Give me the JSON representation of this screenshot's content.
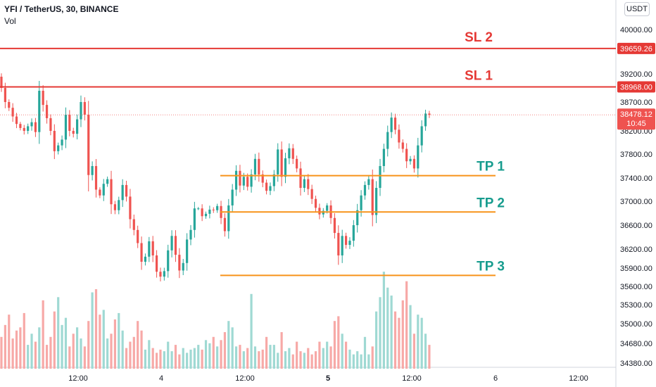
{
  "header": {
    "symbol_line": "YFI / TetherUS, 30, BINANCE",
    "indicator": "Vol",
    "currency": "USDT"
  },
  "chart_data": {
    "type": "candlestick",
    "y_ticks": [
      "40000.00",
      "39200.00",
      "38700.00",
      "38200.00",
      "37800.00",
      "37400.00",
      "37000.00",
      "36600.00",
      "36200.00",
      "35900.00",
      "35600.00",
      "35300.00",
      "35000.00",
      "34680.00",
      "34380.00"
    ],
    "x_ticks": [
      "12:00",
      "4",
      "12:00",
      "5",
      "12:00",
      "6",
      "12:00"
    ],
    "price_tags": [
      {
        "value": "39659.26",
        "color": "#e53935"
      },
      {
        "value": "38968.00",
        "color": "#e53935"
      }
    ],
    "last_price": {
      "value": "38478.12",
      "countdown": "10:45",
      "color": "#ef5350"
    },
    "levels": [
      {
        "label": "SL 2",
        "price": 39659.26,
        "color": "#e53935",
        "kind": "stop"
      },
      {
        "label": "SL 1",
        "price": 38968.0,
        "color": "#e53935",
        "kind": "stop"
      },
      {
        "label": "TP 1",
        "price": 37440,
        "color": "#f7931a",
        "kind": "target"
      },
      {
        "label": "TP 2",
        "price": 36820,
        "color": "#f7931a",
        "kind": "target"
      },
      {
        "label": "TP 3",
        "price": 35780,
        "color": "#f7931a",
        "kind": "target"
      }
    ],
    "up_color": "#26a69a",
    "down_color": "#ef5350",
    "label_color": "#179c8e",
    "closes": [
      38950,
      38700,
      38600,
      38450,
      38320,
      38250,
      38200,
      38280,
      38350,
      38180,
      38900,
      38650,
      38420,
      38200,
      37850,
      37950,
      38050,
      38480,
      38200,
      38150,
      38400,
      38700,
      38480,
      37450,
      37600,
      37200,
      37100,
      37300,
      37380,
      36950,
      36850,
      37020,
      37280,
      37080,
      36700,
      36520,
      36300,
      36000,
      36080,
      36330,
      36100,
      35840,
      35760,
      35850,
      36180,
      36420,
      36110,
      35860,
      35980,
      36360,
      36520,
      36880,
      36880,
      36750,
      36790,
      36860,
      36850,
      36920,
      36720,
      36500,
      36930,
      37200,
      37520,
      37270,
      37420,
      37250,
      37460,
      37720,
      37460,
      37320,
      37180,
      37260,
      37460,
      37880,
      37420,
      37730,
      37900,
      37720,
      37560,
      37230,
      37380,
      37210,
      37040,
      36890,
      36780,
      36840,
      36930,
      36720,
      36470,
      36100,
      36420,
      36270,
      36340,
      36600,
      36850,
      37100,
      37280,
      37380,
      36770,
      37230,
      37600,
      37890,
      38180,
      38430,
      38220,
      38000,
      37890,
      37680,
      37720,
      37560,
      37950,
      38280,
      38500,
      38478
    ],
    "volumes": [
      40,
      55,
      68,
      38,
      48,
      52,
      70,
      30,
      44,
      34,
      52,
      86,
      30,
      40,
      72,
      90,
      55,
      64,
      28,
      44,
      52,
      38,
      28,
      60,
      96,
      100,
      68,
      74,
      38,
      44,
      62,
      70,
      48,
      26,
      34,
      40,
      60,
      48,
      24,
      36,
      26,
      20,
      24,
      22,
      34,
      22,
      30,
      18,
      26,
      20,
      24,
      26,
      30,
      24,
      36,
      32,
      40,
      28,
      36,
      46,
      60,
      52,
      28,
      30,
      22,
      26,
      94,
      28,
      22,
      24,
      40,
      30,
      30,
      20,
      46,
      22,
      26,
      18,
      34,
      22,
      20,
      26,
      18,
      22,
      34,
      26,
      34,
      28,
      60,
      66,
      44,
      34,
      24,
      18,
      22,
      18,
      40,
      18,
      28,
      72,
      90,
      122,
      102,
      92,
      72,
      64,
      86,
      110,
      80,
      44,
      68,
      64,
      44,
      30
    ]
  }
}
